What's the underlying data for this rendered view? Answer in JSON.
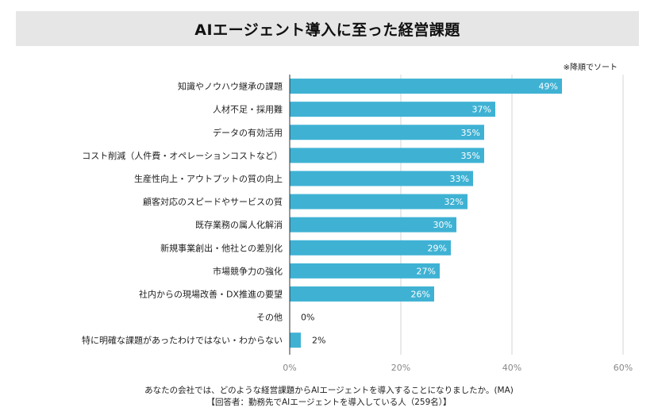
{
  "chart_data": {
    "type": "bar",
    "orientation": "horizontal",
    "title": "AIエージェント導入に至った経営課題",
    "sort_note": "※降順でソート",
    "categories": [
      "知識やノウハウ継承の課題",
      "人材不足・採用難",
      "データの有効活用",
      "コスト削減（人件費・オペレーションコストなど）",
      "生産性向上・アウトプットの質の向上",
      "顧客対応のスピードやサービスの質",
      "既存業務の属人化解消",
      "新規事業創出・他社との差別化",
      "市場競争力の強化",
      "社内からの現場改善・DX推進の要望",
      "その他",
      "特に明確な課題があったわけではない・わからない"
    ],
    "values": [
      49,
      37,
      35,
      35,
      33,
      32,
      30,
      29,
      27,
      26,
      0,
      2
    ],
    "value_labels": [
      "49%",
      "37%",
      "35%",
      "35%",
      "33%",
      "32%",
      "30%",
      "29%",
      "27%",
      "26%",
      "0%",
      "2%"
    ],
    "xlim": [
      0,
      60
    ],
    "xticks": [
      0,
      20,
      40,
      60
    ],
    "xtick_labels": [
      "0%",
      "20%",
      "40%",
      "60%"
    ],
    "grid": true,
    "bar_color": "#3fb2d4"
  },
  "footer": {
    "question": "あなたの会社では、どのような経営課題からAIエージェントを導入することになりましたか。(MA)",
    "respondents": "【回答者：勤務先でAIエージェントを導入している人（259名）】"
  }
}
